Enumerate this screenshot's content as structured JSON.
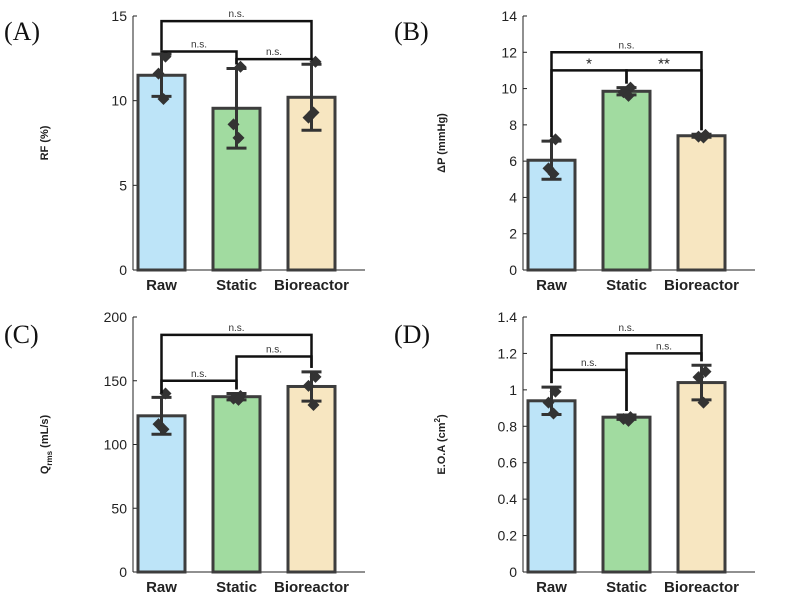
{
  "colors": {
    "raw": "#bde4f8",
    "static": "#a1dba0",
    "bioreactor": "#f7e6c1",
    "edge": "#3d3d3d",
    "marker": "#333333"
  },
  "chart_data": [
    {
      "type": "bar",
      "label": "(A)",
      "categories": [
        "Raw",
        "Static",
        "Bioreactor"
      ],
      "values": [
        11.5,
        9.55,
        10.2
      ],
      "errors": [
        1.25,
        2.35,
        1.95
      ],
      "points": [
        [
          12.6,
          11.6,
          10.1
        ],
        [
          12.0,
          8.6,
          7.8
        ],
        [
          12.3,
          9.0,
          9.3
        ]
      ],
      "ylabel_parts": [
        {
          "t": "RF (%)"
        }
      ],
      "ylim": [
        0,
        15
      ],
      "yticks": [
        "0",
        "5",
        "10",
        "15"
      ],
      "comparisons": [
        {
          "from": 0,
          "to": 1,
          "label": "n.s.",
          "level": 12.9
        },
        {
          "from": 1,
          "to": 2,
          "label": "n.s.",
          "level": 12.45
        },
        {
          "from": 0,
          "to": 2,
          "label": "n.s.",
          "level": 14.7
        }
      ]
    },
    {
      "type": "bar",
      "label": "(B)",
      "categories": [
        "Raw",
        "Static",
        "Bioreactor"
      ],
      "values": [
        6.05,
        9.85,
        7.4
      ],
      "errors": [
        1.05,
        0.2,
        0.08
      ],
      "points": [
        [
          7.2,
          5.6,
          5.3
        ],
        [
          10.05,
          9.8,
          9.6
        ],
        [
          7.45,
          7.35,
          7.3
        ]
      ],
      "ylabel_parts": [
        {
          "t": "ΔP (mmHg)"
        }
      ],
      "ylim": [
        0,
        14
      ],
      "yticks": [
        "0",
        "2",
        "4",
        "6",
        "8",
        "10",
        "12",
        "14"
      ],
      "comparisons": [
        {
          "from": 0,
          "to": 1,
          "label": "*",
          "level": 11.0
        },
        {
          "from": 1,
          "to": 2,
          "label": "**",
          "level": 11.0
        },
        {
          "from": 0,
          "to": 2,
          "label": "n.s.",
          "level": 12.0
        }
      ]
    },
    {
      "type": "bar",
      "label": "(C)",
      "categories": [
        "Raw",
        "Static",
        "Bioreactor"
      ],
      "values": [
        122.5,
        137.5,
        145.5
      ],
      "errors": [
        14.5,
        2.5,
        11.5
      ],
      "points": [
        [
          140.0,
          116.0,
          112.0
        ],
        [
          138.0,
          136.0,
          135.0
        ],
        [
          153.0,
          146.0,
          131.0
        ]
      ],
      "ylabel_parts": [
        {
          "t": "Q"
        },
        {
          "t": "rms",
          "sub": true
        },
        {
          "t": " (mL/s)"
        }
      ],
      "ylim": [
        0,
        200
      ],
      "yticks": [
        "0",
        "50",
        "100",
        "150",
        "200"
      ],
      "comparisons": [
        {
          "from": 0,
          "to": 1,
          "label": "n.s.",
          "level": 150.0
        },
        {
          "from": 1,
          "to": 2,
          "label": "n.s.",
          "level": 169.0
        },
        {
          "from": 0,
          "to": 2,
          "label": "n.s.",
          "level": 186.0
        }
      ]
    },
    {
      "type": "bar",
      "label": "(D)",
      "categories": [
        "Raw",
        "Static",
        "Bioreactor"
      ],
      "values": [
        0.94,
        0.85,
        1.04
      ],
      "errors": [
        0.075,
        0.012,
        0.095
      ],
      "points": [
        [
          0.99,
          0.93,
          0.87
        ],
        [
          0.85,
          0.84,
          0.83
        ],
        [
          1.1,
          1.07,
          0.93
        ]
      ],
      "ylabel_parts": [
        {
          "t": "E.O.A (cm"
        },
        {
          "t": "2",
          "sup": true
        },
        {
          "t": ")"
        }
      ],
      "ylim": [
        0,
        1.4
      ],
      "yticks": [
        "0",
        "0.2",
        "0.4",
        "0.6",
        "0.8",
        "1",
        "1.2",
        "1.4"
      ],
      "comparisons": [
        {
          "from": 0,
          "to": 1,
          "label": "n.s.",
          "level": 1.11
        },
        {
          "from": 1,
          "to": 2,
          "label": "n.s.",
          "level": 1.2
        },
        {
          "from": 0,
          "to": 2,
          "label": "n.s.",
          "level": 1.3
        }
      ]
    }
  ]
}
